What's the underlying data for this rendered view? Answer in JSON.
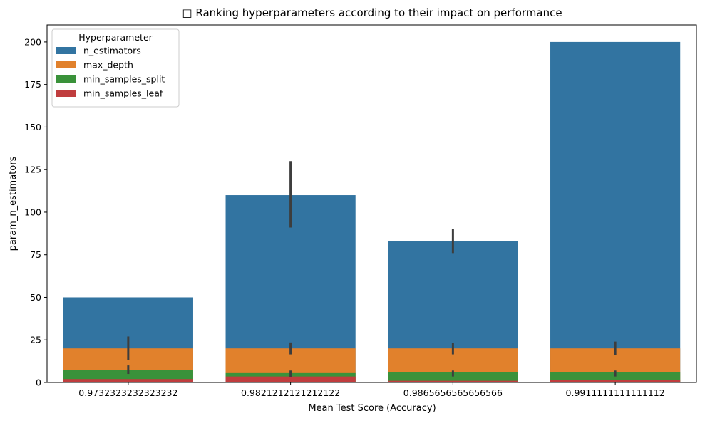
{
  "chart_data": {
    "type": "bar",
    "title": "□ Ranking hyperparameters according to their impact on performance",
    "xlabel": "Mean Test Score (Accuracy)",
    "ylabel": "param_n_estimators",
    "categories": [
      "0.9732323232323232",
      "0.9821212121212122",
      "0.9865656565656566",
      "0.9911111111111112"
    ],
    "ylim": [
      0,
      210
    ],
    "yticks": [
      0,
      25,
      50,
      75,
      100,
      125,
      150,
      175,
      200
    ],
    "grid": false,
    "legend": {
      "title": "Hyperparameter",
      "placement": "top-left"
    },
    "series": [
      {
        "name": "n_estimators",
        "color": "#3274a1",
        "values": [
          50,
          110,
          83,
          200
        ],
        "errors": [
          null,
          [
            91,
            130
          ],
          [
            76,
            90
          ],
          null
        ]
      },
      {
        "name": "max_depth",
        "color": "#e1812c",
        "values": [
          20,
          20,
          20,
          20
        ],
        "errors": [
          [
            13,
            27
          ],
          [
            16.5,
            23.5
          ],
          [
            16.5,
            23
          ],
          [
            16,
            24
          ]
        ]
      },
      {
        "name": "min_samples_split",
        "color": "#3a923a",
        "values": [
          7.5,
          5.5,
          6,
          6
        ],
        "errors": [
          [
            5,
            10
          ],
          [
            3,
            7
          ],
          [
            3.5,
            7
          ],
          [
            3.5,
            7
          ]
        ]
      },
      {
        "name": "min_samples_leaf",
        "color": "#c03d3e",
        "values": [
          2,
          3.5,
          1,
          1.5
        ],
        "errors": [
          null,
          null,
          null,
          null
        ]
      }
    ]
  }
}
